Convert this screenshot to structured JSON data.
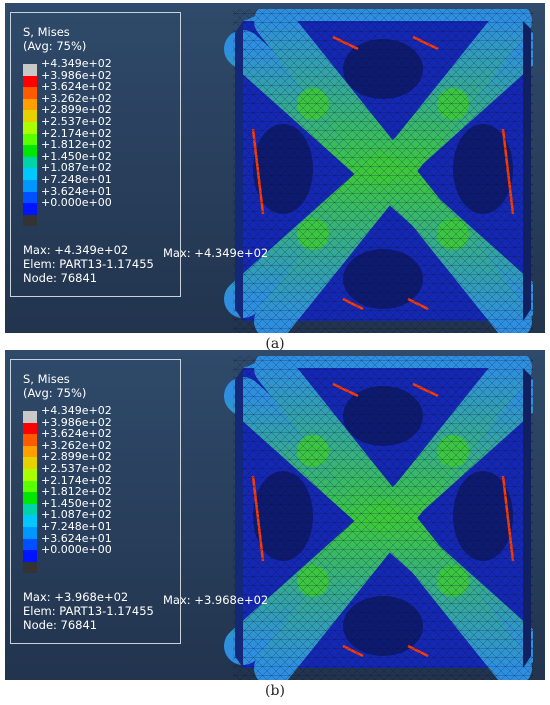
{
  "colors": {
    "background_top": "#2f4a6a",
    "background_bottom": "#22344e",
    "mesh_low": "#1428b4",
    "mesh_mid": "#2e8fe0",
    "mesh_green": "#3cc83a",
    "mesh_high": "#ff3a00"
  },
  "legend_colors": [
    "#c8c8c8",
    "#ff0000",
    "#ff5a00",
    "#ffa000",
    "#e6d200",
    "#aaff00",
    "#5aff00",
    "#00e600",
    "#00d2aa",
    "#00c8ff",
    "#0096ff",
    "#0050ff",
    "#0014ff",
    "#333333"
  ],
  "panels": [
    {
      "caption": "(a)",
      "legend_title": "S, Mises",
      "legend_avg": "(Avg: 75%)",
      "ticks": [
        "+4.349e+02",
        "+3.986e+02",
        "+3.624e+02",
        "+3.262e+02",
        "+2.899e+02",
        "+2.537e+02",
        "+2.174e+02",
        "+1.812e+02",
        "+1.450e+02",
        "+1.087e+02",
        "+7.248e+01",
        "+3.624e+01",
        "+0.000e+00"
      ],
      "max_line": "Max: +4.349e+02",
      "elem_line": "Elem: PART13-1.17455",
      "node_line": "Node: 76841",
      "max_marker": "Max: +4.349e+02"
    },
    {
      "caption": "(b)",
      "legend_title": "S, Mises",
      "legend_avg": "(Avg: 75%)",
      "ticks": [
        "+4.349e+02",
        "+3.986e+02",
        "+3.624e+02",
        "+3.262e+02",
        "+2.899e+02",
        "+2.537e+02",
        "+2.174e+02",
        "+1.812e+02",
        "+1.450e+02",
        "+1.087e+02",
        "+7.248e+01",
        "+3.624e+01",
        "+0.000e+00"
      ],
      "max_line": "Max: +3.968e+02",
      "elem_line": "Elem: PART13-1.17455",
      "node_line": "Node: 76841",
      "max_marker": "Max: +3.968e+02"
    }
  ]
}
